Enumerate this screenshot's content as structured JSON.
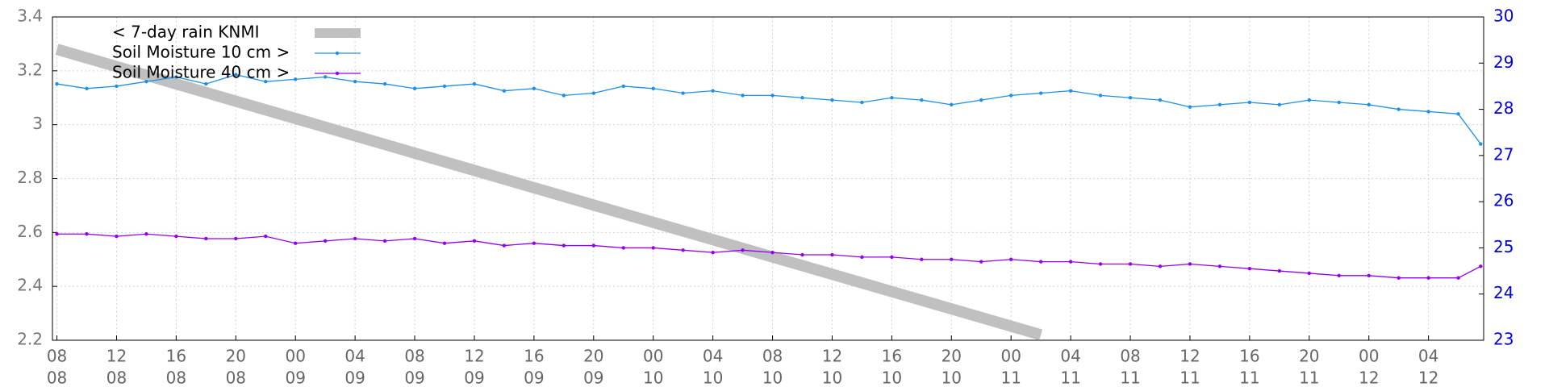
{
  "chart_data": {
    "type": "line",
    "series": [
      {
        "name": "< 7-day rain KNMI",
        "color": "#c0c0c0",
        "axis": "y",
        "x": [
          0,
          66
        ],
        "values": [
          3.28,
          2.22
        ]
      },
      {
        "name": "Soil Moisture 10 cm >",
        "color": "#1e90e8",
        "axis": "y2",
        "x": [
          0,
          2,
          4,
          6,
          8,
          10,
          12,
          14,
          16,
          18,
          20,
          22,
          24,
          26,
          28,
          30,
          32,
          34,
          36,
          38,
          40,
          42,
          44,
          46,
          48,
          50,
          52,
          54,
          56,
          58,
          60,
          62,
          64,
          66,
          68,
          70,
          72,
          74,
          76,
          78,
          80,
          82,
          84,
          86,
          88,
          90,
          92,
          94,
          95.5
        ],
        "values": [
          28.55,
          28.45,
          28.5,
          28.6,
          28.7,
          28.55,
          28.75,
          28.6,
          28.65,
          28.7,
          28.6,
          28.55,
          28.45,
          28.5,
          28.55,
          28.4,
          28.45,
          28.3,
          28.35,
          28.5,
          28.45,
          28.35,
          28.4,
          28.3,
          28.3,
          28.25,
          28.2,
          28.15,
          28.25,
          28.2,
          28.1,
          28.2,
          28.3,
          28.35,
          28.4,
          28.3,
          28.25,
          28.2,
          28.05,
          28.1,
          28.15,
          28.1,
          28.2,
          28.15,
          28.1,
          28.0,
          27.95,
          27.9,
          27.25
        ]
      },
      {
        "name": "Soil Moisture 40 cm >",
        "color": "#9400f0",
        "axis": "y2",
        "x": [
          0,
          2,
          4,
          6,
          8,
          10,
          12,
          14,
          16,
          18,
          20,
          22,
          24,
          26,
          28,
          30,
          32,
          34,
          36,
          38,
          40,
          42,
          44,
          46,
          48,
          50,
          52,
          54,
          56,
          58,
          60,
          62,
          64,
          66,
          68,
          70,
          72,
          74,
          76,
          78,
          80,
          82,
          84,
          86,
          88,
          90,
          92,
          94,
          95.5
        ],
        "values": [
          25.3,
          25.3,
          25.25,
          25.3,
          25.25,
          25.2,
          25.2,
          25.25,
          25.1,
          25.15,
          25.2,
          25.15,
          25.2,
          25.1,
          25.15,
          25.05,
          25.1,
          25.05,
          25.05,
          25.0,
          25.0,
          24.95,
          24.9,
          24.95,
          24.9,
          24.85,
          24.85,
          24.8,
          24.8,
          24.75,
          24.75,
          24.7,
          24.75,
          24.7,
          24.7,
          24.65,
          24.65,
          24.6,
          24.65,
          24.6,
          24.55,
          24.5,
          24.45,
          24.4,
          24.4,
          24.35,
          24.35,
          24.35,
          24.6
        ]
      }
    ],
    "xlim": [
      -0.3,
      95.7
    ],
    "xticks": [
      {
        "value": 0,
        "hour": "08",
        "day": "08"
      },
      {
        "value": 4,
        "hour": "12",
        "day": "08"
      },
      {
        "value": 8,
        "hour": "16",
        "day": "08"
      },
      {
        "value": 12,
        "hour": "20",
        "day": "08"
      },
      {
        "value": 16,
        "hour": "00",
        "day": "09"
      },
      {
        "value": 20,
        "hour": "04",
        "day": "09"
      },
      {
        "value": 24,
        "hour": "08",
        "day": "09"
      },
      {
        "value": 28,
        "hour": "12",
        "day": "09"
      },
      {
        "value": 32,
        "hour": "16",
        "day": "09"
      },
      {
        "value": 36,
        "hour": "20",
        "day": "09"
      },
      {
        "value": 40,
        "hour": "00",
        "day": "10"
      },
      {
        "value": 44,
        "hour": "04",
        "day": "10"
      },
      {
        "value": 48,
        "hour": "08",
        "day": "10"
      },
      {
        "value": 52,
        "hour": "12",
        "day": "10"
      },
      {
        "value": 56,
        "hour": "16",
        "day": "10"
      },
      {
        "value": 60,
        "hour": "20",
        "day": "10"
      },
      {
        "value": 64,
        "hour": "00",
        "day": "11"
      },
      {
        "value": 68,
        "hour": "04",
        "day": "11"
      },
      {
        "value": 72,
        "hour": "08",
        "day": "11"
      },
      {
        "value": 76,
        "hour": "12",
        "day": "11"
      },
      {
        "value": 80,
        "hour": "16",
        "day": "11"
      },
      {
        "value": 84,
        "hour": "20",
        "day": "11"
      },
      {
        "value": 88,
        "hour": "00",
        "day": "12"
      },
      {
        "value": 92,
        "hour": "04",
        "day": "12"
      }
    ],
    "ylim": [
      2.2,
      3.4
    ],
    "yticks": [
      2.2,
      2.4,
      2.6,
      2.8,
      3,
      3.2,
      3.4
    ],
    "y2lim": [
      23,
      30
    ],
    "y2ticks": [
      23,
      24,
      25,
      26,
      27,
      28,
      29,
      30
    ],
    "grid": true,
    "legend": "top-left"
  }
}
